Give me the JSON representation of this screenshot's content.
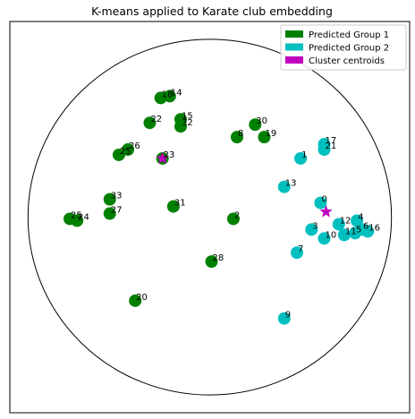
{
  "chart_data": {
    "type": "scatter",
    "title": "K-means applied to Karate club embedding",
    "xlabel": "",
    "ylabel": "",
    "xlim": [
      -1.1,
      1.1
    ],
    "ylim": [
      -1.1,
      1.1
    ],
    "grid": false,
    "axis_ticks": false,
    "legend_placement": "top-right",
    "boundary_circle": {
      "center": [
        0,
        0
      ],
      "radius": 1
    },
    "colors": {
      "group1": "#008000",
      "group2": "#00bfbf",
      "centroid": "#bf00bf"
    },
    "legend": [
      {
        "key": "group1",
        "label": "Predicted Group 1"
      },
      {
        "key": "group2",
        "label": "Predicted Group 2"
      },
      {
        "key": "centroid",
        "label": "Cluster centroids"
      }
    ],
    "series": [
      {
        "name": "Predicted Group 1",
        "key": "group1",
        "points": [
          {
            "label": "18",
            "x": -0.27,
            "y": 0.67
          },
          {
            "label": "14",
            "x": -0.22,
            "y": 0.68
          },
          {
            "label": "15",
            "x": -0.16,
            "y": 0.55
          },
          {
            "label": "32",
            "x": -0.16,
            "y": 0.51
          },
          {
            "label": "22",
            "x": -0.33,
            "y": 0.53
          },
          {
            "label": "30",
            "x": 0.25,
            "y": 0.52
          },
          {
            "label": "8",
            "x": 0.15,
            "y": 0.45
          },
          {
            "label": "19",
            "x": 0.3,
            "y": 0.45
          },
          {
            "label": "26",
            "x": -0.45,
            "y": 0.38
          },
          {
            "label": "25",
            "x": -0.5,
            "y": 0.35
          },
          {
            "label": "23",
            "x": -0.26,
            "y": 0.33
          },
          {
            "label": "33",
            "x": -0.55,
            "y": 0.1
          },
          {
            "label": "27",
            "x": -0.55,
            "y": 0.02
          },
          {
            "label": "31",
            "x": -0.2,
            "y": 0.06
          },
          {
            "label": "25",
            "x": -0.77,
            "y": -0.01
          },
          {
            "label": "24",
            "x": -0.73,
            "y": -0.02
          },
          {
            "label": "2",
            "x": 0.13,
            "y": -0.01
          },
          {
            "label": "28",
            "x": 0.01,
            "y": -0.25
          },
          {
            "label": "20",
            "x": -0.41,
            "y": -0.47
          }
        ]
      },
      {
        "name": "Predicted Group 2",
        "key": "group2",
        "points": [
          {
            "label": "17",
            "x": 0.63,
            "y": 0.41
          },
          {
            "label": "21",
            "x": 0.63,
            "y": 0.38
          },
          {
            "label": "1",
            "x": 0.5,
            "y": 0.33
          },
          {
            "label": "13",
            "x": 0.41,
            "y": 0.17
          },
          {
            "label": "0",
            "x": 0.61,
            "y": 0.08
          },
          {
            "label": "4",
            "x": 0.81,
            "y": -0.02
          },
          {
            "label": "12",
            "x": 0.71,
            "y": -0.04
          },
          {
            "label": "3",
            "x": 0.56,
            "y": -0.07
          },
          {
            "label": "6",
            "x": 0.84,
            "y": -0.07
          },
          {
            "label": "16",
            "x": 0.87,
            "y": -0.08
          },
          {
            "label": "5",
            "x": 0.8,
            "y": -0.09
          },
          {
            "label": "11",
            "x": 0.74,
            "y": -0.1
          },
          {
            "label": "10",
            "x": 0.63,
            "y": -0.12
          },
          {
            "label": "7",
            "x": 0.48,
            "y": -0.2
          },
          {
            "label": "9",
            "x": 0.41,
            "y": -0.57
          }
        ]
      }
    ],
    "centroids": [
      {
        "name": "Cluster centroids",
        "x": -0.26,
        "y": 0.33
      },
      {
        "name": "Cluster centroids",
        "x": 0.64,
        "y": 0.03
      }
    ]
  }
}
